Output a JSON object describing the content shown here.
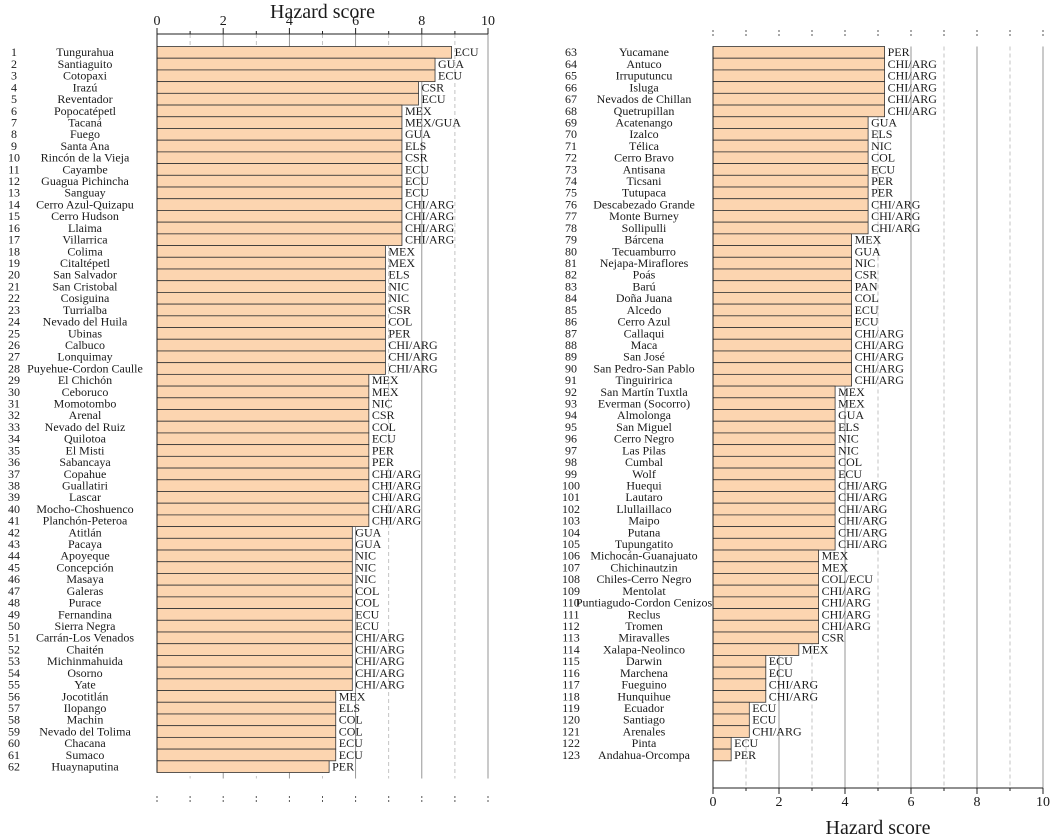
{
  "chart_data": [
    {
      "type": "bar",
      "orientation": "horizontal",
      "panel": "left",
      "title": "",
      "xlabel": "Hazard score",
      "xlabel_position": "top",
      "ylabel": "",
      "xlim": [
        0,
        10
      ],
      "xticks": [
        0,
        2,
        4,
        6,
        8,
        10
      ],
      "bar_color": "#fcd5b0",
      "edge_color": "#333333",
      "items": [
        {
          "rank": "1",
          "name": "Tungurahua",
          "score": 8.9,
          "country": "ECU"
        },
        {
          "rank": "2",
          "name": "Santiaguito",
          "score": 8.4,
          "country": "GUA"
        },
        {
          "rank": "3",
          "name": "Cotopaxi",
          "score": 8.4,
          "country": "ECU"
        },
        {
          "rank": "4",
          "name": "Irazú",
          "score": 7.9,
          "country": "CSR"
        },
        {
          "rank": "5",
          "name": "Reventador",
          "score": 7.9,
          "country": "ECU"
        },
        {
          "rank": "6",
          "name": "Popocatépetl",
          "score": 7.4,
          "country": "MEX"
        },
        {
          "rank": "7",
          "name": "Tacaná",
          "score": 7.4,
          "country": "MEX/GUA"
        },
        {
          "rank": "8",
          "name": "Fuego",
          "score": 7.4,
          "country": "GUA"
        },
        {
          "rank": "9",
          "name": "Santa Ana",
          "score": 7.4,
          "country": "ELS"
        },
        {
          "rank": "10",
          "name": "Rincón de la Vieja",
          "score": 7.4,
          "country": "CSR"
        },
        {
          "rank": "11",
          "name": "Cayambe",
          "score": 7.4,
          "country": "ECU"
        },
        {
          "rank": "12",
          "name": "Guagua Pichincha",
          "score": 7.4,
          "country": "ECU"
        },
        {
          "rank": "13",
          "name": "Sanguay",
          "score": 7.4,
          "country": "ECU"
        },
        {
          "rank": "14",
          "name": "Cerro Azul-Quizapu",
          "score": 7.4,
          "country": "CHI/ARG"
        },
        {
          "rank": "15",
          "name": "Cerro Hudson",
          "score": 7.4,
          "country": "CHI/ARG"
        },
        {
          "rank": "16",
          "name": "Llaima",
          "score": 7.4,
          "country": "CHI/ARG"
        },
        {
          "rank": "17",
          "name": "Villarrica",
          "score": 7.4,
          "country": "CHI/ARG"
        },
        {
          "rank": "18",
          "name": "Colima",
          "score": 6.9,
          "country": "MEX"
        },
        {
          "rank": "19",
          "name": "Citaltépetl",
          "score": 6.9,
          "country": "MEX"
        },
        {
          "rank": "20",
          "name": "San Salvador",
          "score": 6.9,
          "country": "ELS"
        },
        {
          "rank": "21",
          "name": "San Cristobal",
          "score": 6.9,
          "country": "NIC"
        },
        {
          "rank": "22",
          "name": "Cosiguina",
          "score": 6.9,
          "country": "NIC"
        },
        {
          "rank": "23",
          "name": "Turrialba",
          "score": 6.9,
          "country": "CSR"
        },
        {
          "rank": "24",
          "name": "Nevado del Huila",
          "score": 6.9,
          "country": "COL"
        },
        {
          "rank": "25",
          "name": "Ubinas",
          "score": 6.9,
          "country": "PER"
        },
        {
          "rank": "26",
          "name": "Calbuco",
          "score": 6.9,
          "country": "CHI/ARG"
        },
        {
          "rank": "27",
          "name": "Lonquimay",
          "score": 6.9,
          "country": "CHI/ARG"
        },
        {
          "rank": "28",
          "name": "Puyehue-Cordon Caulle",
          "score": 6.9,
          "country": "CHI/ARG"
        },
        {
          "rank": "29",
          "name": "El Chichón",
          "score": 6.4,
          "country": "MEX"
        },
        {
          "rank": "30",
          "name": "Ceboruco",
          "score": 6.4,
          "country": "MEX"
        },
        {
          "rank": "31",
          "name": "Momotombo",
          "score": 6.4,
          "country": "NIC"
        },
        {
          "rank": "32",
          "name": "Arenal",
          "score": 6.4,
          "country": "CSR"
        },
        {
          "rank": "33",
          "name": "Nevado del Ruiz",
          "score": 6.4,
          "country": "COL"
        },
        {
          "rank": "34",
          "name": "Quilotoa",
          "score": 6.4,
          "country": "ECU"
        },
        {
          "rank": "35",
          "name": "El Misti",
          "score": 6.4,
          "country": "PER"
        },
        {
          "rank": "36",
          "name": "Sabancaya",
          "score": 6.4,
          "country": "PER"
        },
        {
          "rank": "37",
          "name": "Copahue",
          "score": 6.4,
          "country": "CHI/ARG"
        },
        {
          "rank": "38",
          "name": "Guallatiri",
          "score": 6.4,
          "country": "CHI/ARG"
        },
        {
          "rank": "39",
          "name": "Lascar",
          "score": 6.4,
          "country": "CHI/ARG"
        },
        {
          "rank": "40",
          "name": "Mocho-Choshuenco",
          "score": 6.4,
          "country": "CHI/ARG"
        },
        {
          "rank": "41",
          "name": "Planchón-Peteroa",
          "score": 6.4,
          "country": "CHI/ARG"
        },
        {
          "rank": "42",
          "name": "Atitlán",
          "score": 5.9,
          "country": "GUA"
        },
        {
          "rank": "43",
          "name": "Pacaya",
          "score": 5.9,
          "country": "GUA"
        },
        {
          "rank": "44",
          "name": "Apoyeque",
          "score": 5.9,
          "country": "NIC"
        },
        {
          "rank": "45",
          "name": "Concepción",
          "score": 5.9,
          "country": "NIC"
        },
        {
          "rank": "46",
          "name": "Masaya",
          "score": 5.9,
          "country": "NIC"
        },
        {
          "rank": "47",
          "name": "Galeras",
          "score": 5.9,
          "country": "COL"
        },
        {
          "rank": "48",
          "name": "Purace",
          "score": 5.9,
          "country": "COL"
        },
        {
          "rank": "49",
          "name": "Fernandina",
          "score": 5.9,
          "country": "ECU"
        },
        {
          "rank": "50",
          "name": "Sierra Negra",
          "score": 5.9,
          "country": "ECU"
        },
        {
          "rank": "51",
          "name": "Carrán-Los Venados",
          "score": 5.9,
          "country": "CHI/ARG"
        },
        {
          "rank": "52",
          "name": "Chaitén",
          "score": 5.9,
          "country": "CHI/ARG"
        },
        {
          "rank": "53",
          "name": "Michinmahuida",
          "score": 5.9,
          "country": "CHI/ARG"
        },
        {
          "rank": "54",
          "name": "Osorno",
          "score": 5.9,
          "country": "CHI/ARG"
        },
        {
          "rank": "55",
          "name": "Yate",
          "score": 5.9,
          "country": "CHI/ARG"
        },
        {
          "rank": "56",
          "name": "Jocotitlán",
          "score": 5.4,
          "country": "MEX"
        },
        {
          "rank": "57",
          "name": "Ilopango",
          "score": 5.4,
          "country": "ELS"
        },
        {
          "rank": "58",
          "name": "Machin",
          "score": 5.4,
          "country": "COL"
        },
        {
          "rank": "59",
          "name": "Nevado del Tolima",
          "score": 5.4,
          "country": "COL"
        },
        {
          "rank": "60",
          "name": "Chacana",
          "score": 5.4,
          "country": "ECU"
        },
        {
          "rank": "61",
          "name": "Sumaco",
          "score": 5.4,
          "country": "ECU"
        },
        {
          "rank": "62",
          "name": "Huaynaputina",
          "score": 5.2,
          "country": "PER"
        }
      ]
    },
    {
      "type": "bar",
      "orientation": "horizontal",
      "panel": "right",
      "title": "",
      "xlabel": "Hazard score",
      "xlabel_position": "bottom",
      "ylabel": "",
      "xlim": [
        0,
        10
      ],
      "xticks": [
        0,
        2,
        4,
        6,
        8,
        10
      ],
      "bar_color": "#fcd5b0",
      "edge_color": "#333333",
      "items": [
        {
          "rank": "63",
          "name": "Yucamane",
          "score": 5.2,
          "country": "PER"
        },
        {
          "rank": "64",
          "name": "Antuco",
          "score": 5.2,
          "country": "CHI/ARG"
        },
        {
          "rank": "65",
          "name": "Irruputuncu",
          "score": 5.2,
          "country": "CHI/ARG"
        },
        {
          "rank": "66",
          "name": "Isluga",
          "score": 5.2,
          "country": "CHI/ARG"
        },
        {
          "rank": "67",
          "name": "Nevados de Chillan",
          "score": 5.2,
          "country": "CHI/ARG"
        },
        {
          "rank": "68",
          "name": "Quetrupillan",
          "score": 5.2,
          "country": "CHI/ARG"
        },
        {
          "rank": "69",
          "name": "Acatenango",
          "score": 4.7,
          "country": "GUA"
        },
        {
          "rank": "70",
          "name": "Izalco",
          "score": 4.7,
          "country": "ELS"
        },
        {
          "rank": "71",
          "name": "Télica",
          "score": 4.7,
          "country": "NIC"
        },
        {
          "rank": "72",
          "name": "Cerro Bravo",
          "score": 4.7,
          "country": "COL"
        },
        {
          "rank": "73",
          "name": "Antisana",
          "score": 4.7,
          "country": "ECU"
        },
        {
          "rank": "74",
          "name": "Ticsani",
          "score": 4.7,
          "country": "PER"
        },
        {
          "rank": "75",
          "name": "Tutupaca",
          "score": 4.7,
          "country": "PER"
        },
        {
          "rank": "76",
          "name": "Descabezado Grande",
          "score": 4.7,
          "country": "CHI/ARG"
        },
        {
          "rank": "77",
          "name": "Monte Burney",
          "score": 4.7,
          "country": "CHI/ARG"
        },
        {
          "rank": "78",
          "name": "Sollipulli",
          "score": 4.7,
          "country": "CHI/ARG"
        },
        {
          "rank": "79",
          "name": "Bárcena",
          "score": 4.2,
          "country": "MEX"
        },
        {
          "rank": "80",
          "name": "Tecuamburro",
          "score": 4.2,
          "country": "GUA"
        },
        {
          "rank": "81",
          "name": "Nejapa-Miraflores",
          "score": 4.2,
          "country": "NIC"
        },
        {
          "rank": "82",
          "name": "Poás",
          "score": 4.2,
          "country": "CSR"
        },
        {
          "rank": "83",
          "name": "Barú",
          "score": 4.2,
          "country": "PAN"
        },
        {
          "rank": "84",
          "name": "Doña Juana",
          "score": 4.2,
          "country": "COL"
        },
        {
          "rank": "85",
          "name": "Alcedo",
          "score": 4.2,
          "country": "ECU"
        },
        {
          "rank": "86",
          "name": "Cerro Azul",
          "score": 4.2,
          "country": "ECU"
        },
        {
          "rank": "87",
          "name": "Callaqui",
          "score": 4.2,
          "country": "CHI/ARG"
        },
        {
          "rank": "88",
          "name": "Maca",
          "score": 4.2,
          "country": "CHI/ARG"
        },
        {
          "rank": "89",
          "name": "San José",
          "score": 4.2,
          "country": "CHI/ARG"
        },
        {
          "rank": "90",
          "name": "San Pedro-San Pablo",
          "score": 4.2,
          "country": "CHI/ARG"
        },
        {
          "rank": "91",
          "name": "Tinguiririca",
          "score": 4.2,
          "country": "CHI/ARG"
        },
        {
          "rank": "92",
          "name": "San Martín Tuxtla",
          "score": 3.7,
          "country": "MEX"
        },
        {
          "rank": "93",
          "name": "Everman (Socorro)",
          "score": 3.7,
          "country": "MEX"
        },
        {
          "rank": "94",
          "name": "Almolonga",
          "score": 3.7,
          "country": "GUA"
        },
        {
          "rank": "95",
          "name": "San Miguel",
          "score": 3.7,
          "country": "ELS"
        },
        {
          "rank": "96",
          "name": "Cerro Negro",
          "score": 3.7,
          "country": "NIC"
        },
        {
          "rank": "97",
          "name": "Las Pilas",
          "score": 3.7,
          "country": "NIC"
        },
        {
          "rank": "98",
          "name": "Cumbal",
          "score": 3.7,
          "country": "COL"
        },
        {
          "rank": "99",
          "name": "Wolf",
          "score": 3.7,
          "country": "ECU"
        },
        {
          "rank": "100",
          "name": "Huequi",
          "score": 3.7,
          "country": "CHI/ARG"
        },
        {
          "rank": "101",
          "name": "Lautaro",
          "score": 3.7,
          "country": "CHI/ARG"
        },
        {
          "rank": "102",
          "name": "Llullaillaco",
          "score": 3.7,
          "country": "CHI/ARG"
        },
        {
          "rank": "103",
          "name": "Maipo",
          "score": 3.7,
          "country": "CHI/ARG"
        },
        {
          "rank": "104",
          "name": "Putana",
          "score": 3.7,
          "country": "CHI/ARG"
        },
        {
          "rank": "105",
          "name": "Tupungatito",
          "score": 3.7,
          "country": "CHI/ARG"
        },
        {
          "rank": "106",
          "name": "Michocán-Guanajuato",
          "score": 3.2,
          "country": "MEX"
        },
        {
          "rank": "107",
          "name": "Chichinautzin",
          "score": 3.2,
          "country": "MEX"
        },
        {
          "rank": "108",
          "name": "Chiles-Cerro Negro",
          "score": 3.2,
          "country": "COL/ECU"
        },
        {
          "rank": "109",
          "name": "Mentolat",
          "score": 3.2,
          "country": "CHI/ARG"
        },
        {
          "rank": "110",
          "name": "Puntiagudo-Cordon Cenizos",
          "score": 3.2,
          "country": "CHI/ARG"
        },
        {
          "rank": "111",
          "name": "Reclus",
          "score": 3.2,
          "country": "CHI/ARG"
        },
        {
          "rank": "112",
          "name": "Tromen",
          "score": 3.2,
          "country": "CHI/ARG"
        },
        {
          "rank": "113",
          "name": "Miravalles",
          "score": 3.2,
          "country": "CSR"
        },
        {
          "rank": "114",
          "name": "Xalapa-Neolinco",
          "score": 2.6,
          "country": "MEX"
        },
        {
          "rank": "115",
          "name": "Darwin",
          "score": 1.6,
          "country": "ECU"
        },
        {
          "rank": "116",
          "name": "Marchena",
          "score": 1.6,
          "country": "ECU"
        },
        {
          "rank": "117",
          "name": "Fueguino",
          "score": 1.6,
          "country": "CHI/ARG"
        },
        {
          "rank": "118",
          "name": "Hunquihue",
          "score": 1.6,
          "country": "CHI/ARG"
        },
        {
          "rank": "119",
          "name": "Ecuador",
          "score": 1.1,
          "country": "ECU"
        },
        {
          "rank": "120",
          "name": "Santiago",
          "score": 1.1,
          "country": "ECU"
        },
        {
          "rank": "121",
          "name": "Arenales",
          "score": 1.1,
          "country": "CHI/ARG"
        },
        {
          "rank": "122",
          "name": "Pinta",
          "score": 0.55,
          "country": "ECU"
        },
        {
          "rank": "123",
          "name": "Andahua-Orcompa",
          "score": 0.55,
          "country": "PER"
        }
      ]
    }
  ]
}
